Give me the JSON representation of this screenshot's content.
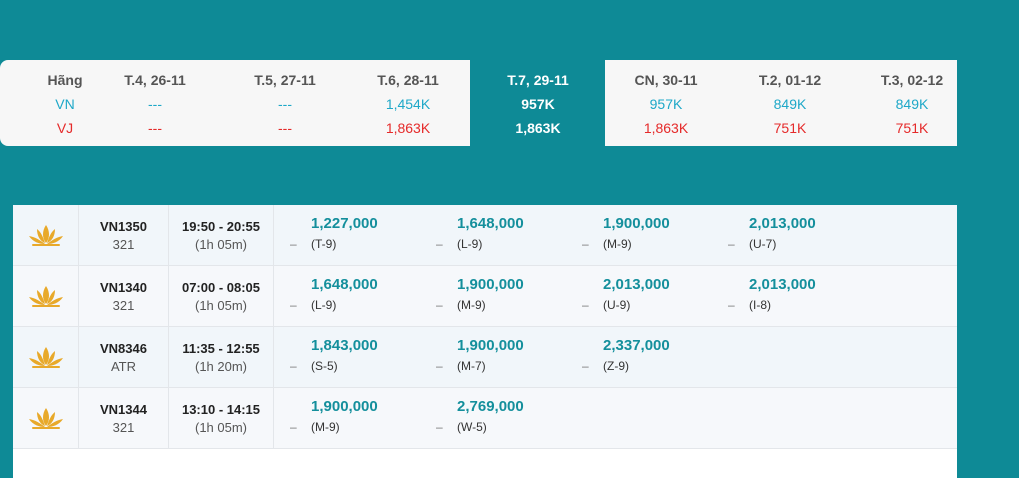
{
  "calendar": {
    "header_label": "Hãng",
    "airlines": [
      "VN",
      "VJ"
    ],
    "days": [
      {
        "date": "T.4, 26-11",
        "vn": "---",
        "vj": "---"
      },
      {
        "date": "T.5, 27-11",
        "vn": "---",
        "vj": "---"
      },
      {
        "date": "T.6, 28-11",
        "vn": "1,454K",
        "vj": "1,863K"
      },
      {
        "date": "T.7, 29-11",
        "vn": "957K",
        "vj": "1,863K",
        "selected": true
      },
      {
        "date": "CN, 30-11",
        "vn": "957K",
        "vj": "1,863K"
      },
      {
        "date": "T.2, 01-12",
        "vn": "849K",
        "vj": "751K"
      },
      {
        "date": "T.3, 02-12",
        "vn": "849K",
        "vj": "751K"
      }
    ]
  },
  "flights": [
    {
      "number": "VN1350",
      "aircraft": "321",
      "time": "19:50 - 20:55",
      "duration": "(1h 05m)",
      "fares": [
        {
          "price": "1,227,000",
          "class": "(T-9)"
        },
        {
          "price": "1,648,000",
          "class": "(L-9)"
        },
        {
          "price": "1,900,000",
          "class": "(M-9)"
        },
        {
          "price": "2,013,000",
          "class": "(U-7)"
        }
      ]
    },
    {
      "number": "VN1340",
      "aircraft": "321",
      "time": "07:00 - 08:05",
      "duration": "(1h 05m)",
      "fares": [
        {
          "price": "1,648,000",
          "class": "(L-9)"
        },
        {
          "price": "1,900,000",
          "class": "(M-9)"
        },
        {
          "price": "2,013,000",
          "class": "(U-9)"
        },
        {
          "price": "2,013,000",
          "class": "(I-8)"
        }
      ]
    },
    {
      "number": "VN8346",
      "aircraft": "ATR",
      "time": "11:35 - 12:55",
      "duration": "(1h 20m)",
      "fares": [
        {
          "price": "1,843,000",
          "class": "(S-5)"
        },
        {
          "price": "1,900,000",
          "class": "(M-7)"
        },
        {
          "price": "2,337,000",
          "class": "(Z-9)"
        }
      ]
    },
    {
      "number": "VN1344",
      "aircraft": "321",
      "time": "13:10 - 14:15",
      "duration": "(1h 05m)",
      "fares": [
        {
          "price": "1,900,000",
          "class": "(M-9)"
        },
        {
          "price": "2,769,000",
          "class": "(W-5)"
        }
      ]
    }
  ],
  "dash_symbol": "–",
  "colors": {
    "background": "#0e8a96",
    "vn": "#1ea8c8",
    "vj": "#e52a2a",
    "price": "#148f9c",
    "logo": "#e8a92a"
  }
}
